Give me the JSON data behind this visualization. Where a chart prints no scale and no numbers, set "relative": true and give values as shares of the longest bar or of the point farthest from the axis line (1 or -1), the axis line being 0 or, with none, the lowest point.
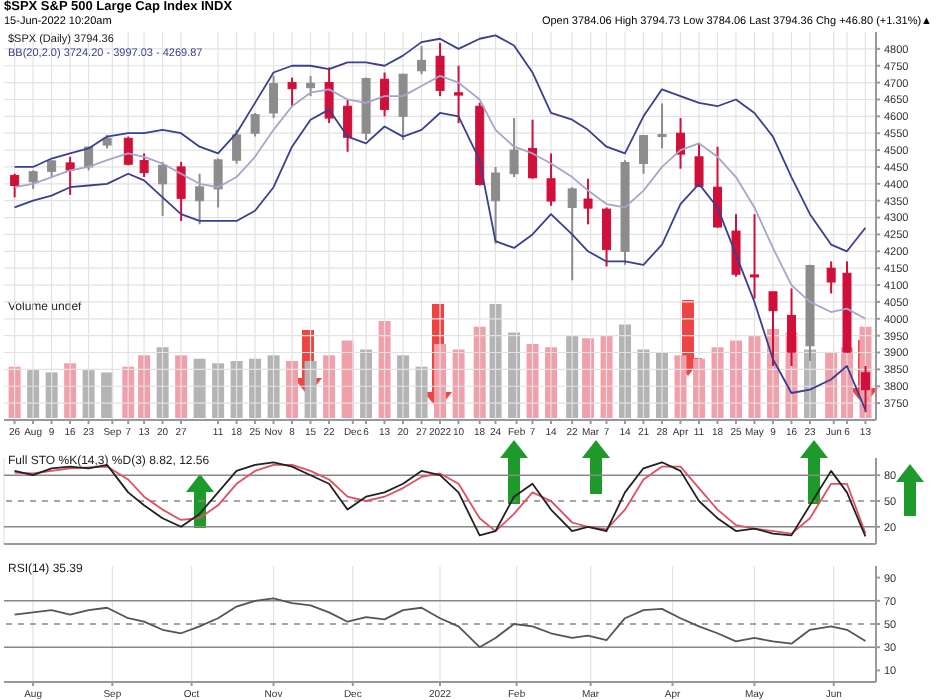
{
  "chart_data": [
    {
      "type": "candlestick",
      "title": "$SPX S&P 500 Large Cap Index INDX",
      "subtitle": "15-Jun-2022 10:20am",
      "annotations": [
        "Open 3784.06 High 3794.73 Low 3784.06 Last 3794.36 Chg +46.80 (+1.31%)▲",
        "$SPX (Daily) 3794.36",
        "BB(20,2.0) 3724.20 - 3997.03 - 4269.87"
      ],
      "x": [
        "2021-07-26",
        "2021-08-02",
        "2021-08-09",
        "2021-08-16",
        "2021-08-23",
        "2021-08-30",
        "2021-09-07",
        "2021-09-13",
        "2021-09-20",
        "2021-09-27",
        "2021-10-04",
        "2021-10-11",
        "2021-10-18",
        "2021-10-25",
        "2021-11-01",
        "2021-11-08",
        "2021-11-15",
        "2021-11-22",
        "2021-11-29",
        "2021-12-06",
        "2021-12-13",
        "2021-12-20",
        "2021-12-27",
        "2022-01-03",
        "2022-01-10",
        "2022-01-18",
        "2022-01-24",
        "2022-01-31",
        "2022-02-07",
        "2022-02-14",
        "2022-02-22",
        "2022-02-28",
        "2022-03-07",
        "2022-03-14",
        "2022-03-21",
        "2022-03-28",
        "2022-04-04",
        "2022-04-11",
        "2022-04-18",
        "2022-04-25",
        "2022-05-02",
        "2022-05-09",
        "2022-05-16",
        "2022-05-23",
        "2022-05-31",
        "2022-06-06",
        "2022-06-13"
      ],
      "ohlc": [
        [
          4425,
          4430,
          4360,
          4395
        ],
        [
          4406,
          4440,
          4385,
          4436
        ],
        [
          4437,
          4470,
          4420,
          4468
        ],
        [
          4462,
          4480,
          4367,
          4441
        ],
        [
          4450,
          4510,
          4440,
          4509
        ],
        [
          4515,
          4545,
          4505,
          4535
        ],
        [
          4535,
          4540,
          4455,
          4458
        ],
        [
          4469,
          4490,
          4420,
          4433
        ],
        [
          4400,
          4465,
          4305,
          4455
        ],
        [
          4450,
          4465,
          4290,
          4357
        ],
        [
          4350,
          4430,
          4280,
          4391
        ],
        [
          4385,
          4475,
          4330,
          4471
        ],
        [
          4470,
          4560,
          4460,
          4545
        ],
        [
          4550,
          4610,
          4540,
          4605
        ],
        [
          4610,
          4720,
          4595,
          4697
        ],
        [
          4700,
          4715,
          4630,
          4682
        ],
        [
          4685,
          4720,
          4660,
          4698
        ],
        [
          4700,
          4745,
          4580,
          4595
        ],
        [
          4630,
          4650,
          4495,
          4538
        ],
        [
          4550,
          4715,
          4530,
          4712
        ],
        [
          4710,
          4730,
          4600,
          4620
        ],
        [
          4600,
          4725,
          4530,
          4725
        ],
        [
          4735,
          4808,
          4725,
          4766
        ],
        [
          4778,
          4818,
          4660,
          4677
        ],
        [
          4670,
          4750,
          4580,
          4663
        ],
        [
          4630,
          4640,
          4395,
          4398
        ],
        [
          4350,
          4450,
          4222,
          4432
        ],
        [
          4430,
          4595,
          4420,
          4500
        ],
        [
          4505,
          4590,
          4415,
          4418
        ],
        [
          4415,
          4490,
          4335,
          4349
        ],
        [
          4330,
          4390,
          4114,
          4385
        ],
        [
          4355,
          4415,
          4280,
          4328
        ],
        [
          4325,
          4330,
          4155,
          4205
        ],
        [
          4200,
          4470,
          4160,
          4463
        ],
        [
          4460,
          4545,
          4430,
          4543
        ],
        [
          4540,
          4638,
          4505,
          4546
        ],
        [
          4550,
          4595,
          4445,
          4488
        ],
        [
          4480,
          4520,
          4390,
          4393
        ],
        [
          4390,
          4510,
          4270,
          4272
        ],
        [
          4260,
          4310,
          4125,
          4132
        ],
        [
          4130,
          4310,
          4060,
          4124
        ],
        [
          4080,
          4080,
          3860,
          4024
        ],
        [
          4010,
          4090,
          3860,
          3901
        ],
        [
          3920,
          4160,
          3875,
          4158
        ],
        [
          4150,
          4170,
          4075,
          4109
        ],
        [
          4135,
          4170,
          3900,
          3901
        ],
        [
          3840,
          3860,
          3723,
          3790
        ]
      ],
      "colors": [
        "#d0103a",
        "#8c8c8c",
        "#8c8c8c",
        "#d0103a",
        "#8c8c8c",
        "#8c8c8c",
        "#d0103a",
        "#d0103a",
        "#8c8c8c",
        "#d0103a",
        "#8c8c8c",
        "#8c8c8c",
        "#8c8c8c",
        "#8c8c8c",
        "#8c8c8c",
        "#d0103a",
        "#8c8c8c",
        "#d0103a",
        "#d0103a",
        "#8c8c8c",
        "#d0103a",
        "#8c8c8c",
        "#8c8c8c",
        "#d0103a",
        "#d0103a",
        "#d0103a",
        "#8c8c8c",
        "#8c8c8c",
        "#d0103a",
        "#d0103a",
        "#8c8c8c",
        "#d0103a",
        "#d0103a",
        "#8c8c8c",
        "#8c8c8c",
        "#8c8c8c",
        "#d0103a",
        "#d0103a",
        "#d0103a",
        "#d0103a",
        "#d0103a",
        "#d0103a",
        "#d0103a",
        "#8c8c8c",
        "#d0103a",
        "#d0103a",
        "#d0103a"
      ],
      "series": [
        {
          "type": "line",
          "color": "#3a3f8f",
          "values": [
            4450,
            4450,
            4475,
            4490,
            4505,
            4540,
            4550,
            4550,
            4560,
            4550,
            4510,
            4490,
            4550,
            4640,
            4730,
            4750,
            4750,
            4740,
            4760,
            4760,
            4750,
            4780,
            4820,
            4830,
            4800,
            4830,
            4840,
            4810,
            4730,
            4610,
            4590,
            4560,
            4510,
            4490,
            4600,
            4680,
            4660,
            4640,
            4630,
            4650,
            4610,
            4540,
            4420,
            4310,
            4220,
            4200,
            4270
          ]
        },
        {
          "type": "line",
          "color": "#a4a6cc",
          "values": [
            4390,
            4400,
            4420,
            4440,
            4450,
            4470,
            4490,
            4480,
            4460,
            4430,
            4400,
            4390,
            4420,
            4480,
            4560,
            4630,
            4670,
            4680,
            4650,
            4640,
            4660,
            4660,
            4690,
            4720,
            4700,
            4650,
            4560,
            4510,
            4490,
            4460,
            4420,
            4380,
            4340,
            4330,
            4380,
            4450,
            4500,
            4520,
            4480,
            4420,
            4330,
            4210,
            4100,
            4050,
            4020,
            4030,
            4000
          ]
        },
        {
          "type": "line",
          "color": "#3a3f8f",
          "values": [
            4330,
            4350,
            4365,
            4390,
            4395,
            4400,
            4430,
            4410,
            4360,
            4310,
            4290,
            4290,
            4290,
            4320,
            4390,
            4510,
            4590,
            4620,
            4540,
            4520,
            4570,
            4540,
            4560,
            4610,
            4600,
            4470,
            4230,
            4210,
            4250,
            4310,
            4250,
            4200,
            4170,
            4170,
            4160,
            4220,
            4340,
            4400,
            4330,
            4190,
            4050,
            3880,
            3780,
            3790,
            3820,
            3860,
            3730
          ]
        }
      ],
      "xlim": [
        "2021-07-22",
        "2022-06-17"
      ],
      "xticks": [
        {
          "value": "2021-07-26",
          "label": "26"
        },
        {
          "value": "2021-08-02",
          "label": "Aug"
        },
        {
          "value": "2021-08-09",
          "label": "9"
        },
        {
          "value": "2021-08-16",
          "label": "16"
        },
        {
          "value": "2021-08-23",
          "label": "23"
        },
        {
          "value": "2021-09-01",
          "label": "Sep"
        },
        {
          "value": "2021-09-07",
          "label": "7"
        },
        {
          "value": "2021-09-13",
          "label": "13"
        },
        {
          "value": "2021-09-20",
          "label": "20"
        },
        {
          "value": "2021-09-27",
          "label": "27"
        },
        {
          "value": "2021-10-11",
          "label": "11"
        },
        {
          "value": "2021-10-18",
          "label": "18"
        },
        {
          "value": "2021-10-25",
          "label": "25"
        },
        {
          "value": "2021-11-01",
          "label": "Nov"
        },
        {
          "value": "2021-11-08",
          "label": "8"
        },
        {
          "value": "2021-11-15",
          "label": "15"
        },
        {
          "value": "2021-11-22",
          "label": "22"
        },
        {
          "value": "2021-12-01",
          "label": "Dec"
        },
        {
          "value": "2021-12-06",
          "label": "6"
        },
        {
          "value": "2021-12-13",
          "label": "13"
        },
        {
          "value": "2021-12-20",
          "label": "20"
        },
        {
          "value": "2021-12-27",
          "label": "27"
        },
        {
          "value": "2022-01-03",
          "label": "2022"
        },
        {
          "value": "2022-01-10",
          "label": "10"
        },
        {
          "value": "2022-01-18",
          "label": "18"
        },
        {
          "value": "2022-01-24",
          "label": "24"
        },
        {
          "value": "2022-02-01",
          "label": "Feb"
        },
        {
          "value": "2022-02-07",
          "label": "7"
        },
        {
          "value": "2022-02-14",
          "label": "14"
        },
        {
          "value": "2022-02-22",
          "label": "22"
        },
        {
          "value": "2022-03-01",
          "label": "Mar"
        },
        {
          "value": "2022-03-07",
          "label": "7"
        },
        {
          "value": "2022-03-14",
          "label": "14"
        },
        {
          "value": "2022-03-21",
          "label": "21"
        },
        {
          "value": "2022-03-28",
          "label": "28"
        },
        {
          "value": "2022-04-04",
          "label": "Apr"
        },
        {
          "value": "2022-04-11",
          "label": "11"
        },
        {
          "value": "2022-04-18",
          "label": "18"
        },
        {
          "value": "2022-04-25",
          "label": "25"
        },
        {
          "value": "2022-05-02",
          "label": "May"
        },
        {
          "value": "2022-05-09",
          "label": "9"
        },
        {
          "value": "2022-05-16",
          "label": "16"
        },
        {
          "value": "2022-05-23",
          "label": "23"
        },
        {
          "value": "2022-06-01",
          "label": "Jun"
        },
        {
          "value": "2022-06-06",
          "label": "6"
        },
        {
          "value": "2022-06-13",
          "label": "13"
        }
      ],
      "ylim": [
        3700,
        4850
      ],
      "yticks": [
        3750,
        3800,
        3850,
        3900,
        3950,
        4000,
        4050,
        4100,
        4150,
        4200,
        4250,
        4300,
        4350,
        4400,
        4450,
        4500,
        4550,
        4600,
        4650,
        4700,
        4750,
        4800
      ],
      "grid": true
    },
    {
      "type": "bar",
      "relative": true,
      "title": "Volume undef",
      "tick_labels": false,
      "x": [
        "2021-07-26",
        "2021-08-02",
        "2021-08-09",
        "2021-08-16",
        "2021-08-23",
        "2021-08-30",
        "2021-09-07",
        "2021-09-13",
        "2021-09-20",
        "2021-09-27",
        "2021-10-04",
        "2021-10-11",
        "2021-10-18",
        "2021-10-25",
        "2021-11-01",
        "2021-11-08",
        "2021-11-15",
        "2021-11-22",
        "2021-11-29",
        "2021-12-06",
        "2021-12-13",
        "2021-12-20",
        "2021-12-27",
        "2022-01-03",
        "2022-01-10",
        "2022-01-18",
        "2022-01-24",
        "2022-01-31",
        "2022-02-07",
        "2022-02-14",
        "2022-02-22",
        "2022-02-28",
        "2022-03-07",
        "2022-03-14",
        "2022-03-21",
        "2022-03-28",
        "2022-04-04",
        "2022-04-11",
        "2022-04-18",
        "2022-04-25",
        "2022-05-02",
        "2022-05-09",
        "2022-05-16",
        "2022-05-23",
        "2022-05-31",
        "2022-06-06",
        "2022-06-13"
      ],
      "values": [
        0.45,
        0.42,
        0.4,
        0.48,
        0.42,
        0.4,
        0.45,
        0.55,
        0.62,
        0.55,
        0.52,
        0.48,
        0.5,
        0.52,
        0.55,
        0.5,
        0.5,
        0.55,
        0.68,
        0.6,
        0.85,
        0.55,
        0.45,
        0.65,
        0.6,
        0.8,
        1.0,
        0.75,
        0.65,
        0.62,
        0.72,
        0.7,
        0.72,
        0.82,
        0.6,
        0.58,
        0.55,
        0.52,
        0.62,
        0.68,
        0.72,
        0.78,
        0.75,
        0.6,
        0.58,
        0.62,
        0.8
      ],
      "colors": [
        "#f0a0aa",
        "#b4b4b4",
        "#b4b4b4",
        "#f0a0aa",
        "#b4b4b4",
        "#b4b4b4",
        "#f0a0aa",
        "#f0a0aa",
        "#b4b4b4",
        "#f0a0aa",
        "#b4b4b4",
        "#b4b4b4",
        "#b4b4b4",
        "#b4b4b4",
        "#b4b4b4",
        "#f0a0aa",
        "#b4b4b4",
        "#f0a0aa",
        "#f0a0aa",
        "#b4b4b4",
        "#f0a0aa",
        "#b4b4b4",
        "#b4b4b4",
        "#f0a0aa",
        "#f0a0aa",
        "#f0a0aa",
        "#b4b4b4",
        "#b4b4b4",
        "#f0a0aa",
        "#f0a0aa",
        "#b4b4b4",
        "#f0a0aa",
        "#f0a0aa",
        "#b4b4b4",
        "#b4b4b4",
        "#b4b4b4",
        "#f0a0aa",
        "#f0a0aa",
        "#f0a0aa",
        "#f0a0aa",
        "#f0a0aa",
        "#f0a0aa",
        "#f0a0aa",
        "#b4b4b4",
        "#f0a0aa",
        "#f0a0aa",
        "#f0a0aa"
      ],
      "xlim": [
        "2021-07-22",
        "2022-06-17"
      ]
    },
    {
      "type": "line",
      "title": "Full STO %K(14,3) %D(3) 8.82, 12.56",
      "tick_labels": "y",
      "x": [
        "2021-07-26",
        "2021-08-02",
        "2021-08-09",
        "2021-08-16",
        "2021-08-23",
        "2021-08-30",
        "2021-09-07",
        "2021-09-13",
        "2021-09-20",
        "2021-09-27",
        "2021-10-04",
        "2021-10-11",
        "2021-10-18",
        "2021-10-25",
        "2021-11-01",
        "2021-11-08",
        "2021-11-15",
        "2021-11-22",
        "2021-11-29",
        "2021-12-06",
        "2021-12-13",
        "2021-12-20",
        "2021-12-27",
        "2022-01-03",
        "2022-01-10",
        "2022-01-18",
        "2022-01-24",
        "2022-01-31",
        "2022-02-07",
        "2022-02-14",
        "2022-02-22",
        "2022-02-28",
        "2022-03-07",
        "2022-03-14",
        "2022-03-21",
        "2022-03-28",
        "2022-04-04",
        "2022-04-11",
        "2022-04-18",
        "2022-04-25",
        "2022-05-02",
        "2022-05-09",
        "2022-05-16",
        "2022-05-23",
        "2022-05-31",
        "2022-06-06",
        "2022-06-13"
      ],
      "series": [
        {
          "color": "#e05060",
          "values": [
            83,
            82,
            85,
            88,
            89,
            90,
            75,
            55,
            40,
            28,
            30,
            45,
            70,
            85,
            92,
            92,
            85,
            75,
            55,
            50,
            55,
            65,
            78,
            82,
            70,
            30,
            15,
            35,
            60,
            50,
            25,
            20,
            17,
            40,
            75,
            90,
            90,
            65,
            40,
            22,
            18,
            15,
            12,
            30,
            70,
            70,
            12.56
          ]
        },
        {
          "color": "#222222",
          "values": [
            85,
            80,
            88,
            90,
            88,
            92,
            60,
            45,
            30,
            20,
            35,
            60,
            85,
            92,
            95,
            90,
            80,
            70,
            40,
            55,
            60,
            70,
            85,
            80,
            60,
            10,
            15,
            55,
            70,
            40,
            15,
            20,
            15,
            60,
            88,
            95,
            85,
            50,
            30,
            15,
            18,
            12,
            10,
            45,
            85,
            60,
            8.82
          ]
        }
      ],
      "xlim": [
        "2021-07-22",
        "2022-06-17"
      ],
      "ylim": [
        0,
        100
      ],
      "yticks": [
        20,
        50,
        80
      ],
      "grid": "x",
      "ref_lines": [
        {
          "axis": "y",
          "value": 80,
          "color": "#888888"
        },
        {
          "axis": "y",
          "value": 50,
          "color": "#888888",
          "line_style": "dashed"
        },
        {
          "axis": "y",
          "value": 20,
          "color": "#888888"
        }
      ]
    },
    {
      "type": "line",
      "title": "RSI(14) 35.39",
      "x": [
        "2021-07-26",
        "2021-08-02",
        "2021-08-09",
        "2021-08-16",
        "2021-08-23",
        "2021-08-30",
        "2021-09-07",
        "2021-09-13",
        "2021-09-20",
        "2021-09-27",
        "2021-10-04",
        "2021-10-11",
        "2021-10-18",
        "2021-10-25",
        "2021-11-01",
        "2021-11-08",
        "2021-11-15",
        "2021-11-22",
        "2021-11-29",
        "2021-12-06",
        "2021-12-13",
        "2021-12-20",
        "2021-12-27",
        "2022-01-03",
        "2022-01-10",
        "2022-01-18",
        "2022-01-24",
        "2022-01-31",
        "2022-02-07",
        "2022-02-14",
        "2022-02-22",
        "2022-02-28",
        "2022-03-07",
        "2022-03-14",
        "2022-03-21",
        "2022-03-28",
        "2022-04-04",
        "2022-04-11",
        "2022-04-18",
        "2022-04-25",
        "2022-05-02",
        "2022-05-09",
        "2022-05-16",
        "2022-05-23",
        "2022-05-31",
        "2022-06-06",
        "2022-06-13"
      ],
      "series": [
        {
          "color": "#555555",
          "values": [
            58,
            60,
            62,
            58,
            62,
            64,
            55,
            52,
            45,
            42,
            48,
            55,
            65,
            70,
            72,
            68,
            66,
            60,
            52,
            56,
            54,
            62,
            64,
            55,
            48,
            30,
            38,
            50,
            48,
            42,
            38,
            40,
            36,
            55,
            62,
            63,
            55,
            48,
            42,
            35,
            38,
            35,
            33,
            45,
            48,
            45,
            35.39
          ]
        }
      ],
      "xlim": [
        "2021-07-22",
        "2022-06-17"
      ],
      "xticks": [
        {
          "value": "2021-08-02",
          "label": "Aug"
        },
        {
          "value": "2021-09-01",
          "label": "Sep"
        },
        {
          "value": "2021-10-01",
          "label": "Oct"
        },
        {
          "value": "2021-11-01",
          "label": "Nov"
        },
        {
          "value": "2021-12-01",
          "label": "Dec"
        },
        {
          "value": "2022-01-03",
          "label": "2022"
        },
        {
          "value": "2022-02-01",
          "label": "Feb"
        },
        {
          "value": "2022-03-01",
          "label": "Mar"
        },
        {
          "value": "2022-04-01",
          "label": "Apr"
        },
        {
          "value": "2022-05-02",
          "label": "May"
        },
        {
          "value": "2022-06-01",
          "label": "Jun"
        }
      ],
      "ylim": [
        0,
        100
      ],
      "yticks": [
        10,
        30,
        50,
        70,
        90
      ],
      "grid": "x",
      "ref_lines": [
        {
          "axis": "y",
          "value": 70,
          "color": "#888888"
        },
        {
          "axis": "y",
          "value": 50,
          "color": "#888888",
          "line_style": "dashed"
        },
        {
          "axis": "y",
          "value": 30,
          "color": "#888888"
        }
      ]
    }
  ]
}
